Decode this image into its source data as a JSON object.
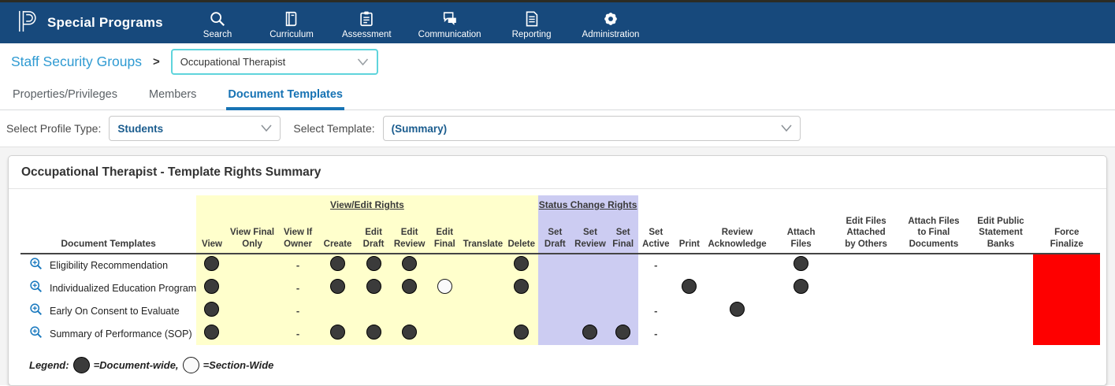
{
  "topnav": {
    "brand": "Special Programs",
    "items": [
      {
        "label": "Search",
        "icon": "search-icon"
      },
      {
        "label": "Curriculum",
        "icon": "book-icon"
      },
      {
        "label": "Assessment",
        "icon": "clipboard-icon"
      },
      {
        "label": "Communication",
        "icon": "chat-bubbles-icon"
      },
      {
        "label": "Reporting",
        "icon": "report-document-icon"
      },
      {
        "label": "Administration",
        "icon": "gear-icon"
      }
    ]
  },
  "breadcrumb": {
    "root": "Staff Security Groups",
    "separator": ">",
    "group_select_value": "Occupational Therapist"
  },
  "tabs": [
    {
      "label": "Properties/Privileges",
      "active": false
    },
    {
      "label": "Members",
      "active": false
    },
    {
      "label": "Document Templates",
      "active": true
    }
  ],
  "filters": {
    "profile_type_label": "Select Profile Type:",
    "profile_type_value": "Students",
    "template_label": "Select Template:",
    "template_value": "(Summary)"
  },
  "summary_card": {
    "title": "Occupational Therapist - Template Rights Summary",
    "doc_col_header": "Document Templates",
    "groups": [
      {
        "key": "view_edit",
        "label": "View/Edit Rights",
        "color": "#ffffcc"
      },
      {
        "key": "status_change",
        "label": "Status Change Rights",
        "color": "#ccccf2"
      }
    ],
    "columns": [
      {
        "key": "view",
        "label": "View",
        "group": "view_edit"
      },
      {
        "key": "view_final_only",
        "label": "View Final\nOnly",
        "group": "view_edit"
      },
      {
        "key": "view_if_owner",
        "label": "View If\nOwner",
        "group": "view_edit"
      },
      {
        "key": "create",
        "label": "Create",
        "group": "view_edit"
      },
      {
        "key": "edit_draft",
        "label": "Edit\nDraft",
        "group": "view_edit"
      },
      {
        "key": "edit_review",
        "label": "Edit\nReview",
        "group": "view_edit"
      },
      {
        "key": "edit_final",
        "label": "Edit\nFinal",
        "group": "view_edit"
      },
      {
        "key": "translate",
        "label": "Translate",
        "group": "view_edit"
      },
      {
        "key": "delete",
        "label": "Delete",
        "group": "view_edit"
      },
      {
        "key": "set_draft",
        "label": "Set\nDraft",
        "group": "status_change"
      },
      {
        "key": "set_review",
        "label": "Set\nReview",
        "group": "status_change"
      },
      {
        "key": "set_final",
        "label": "Set\nFinal",
        "group": "status_change"
      },
      {
        "key": "set_active",
        "label": "Set\nActive",
        "group": null
      },
      {
        "key": "print",
        "label": "Print",
        "group": null
      },
      {
        "key": "review_acknowledge",
        "label": "Review\nAcknowledge",
        "group": null
      },
      {
        "key": "attach_files",
        "label": "Attach\nFiles",
        "group": null
      },
      {
        "key": "edit_files_attached_by_others",
        "label": "Edit Files\nAttached\nby Others",
        "group": null
      },
      {
        "key": "attach_files_to_final_documents",
        "label": "Attach Files\nto Final\nDocuments",
        "group": null
      },
      {
        "key": "edit_public_statement_banks",
        "label": "Edit Public\nStatement\nBanks",
        "group": null
      },
      {
        "key": "force_finalize",
        "label": "Force\nFinalize",
        "group": null
      }
    ],
    "rows": [
      {
        "label": "Eligibility Recommendation",
        "row_icon": "zoom-in-icon",
        "cells": {
          "view": "dark",
          "view_if_owner": "dash",
          "create": "dark",
          "edit_draft": "dark",
          "edit_review": "dark",
          "delete": "dark",
          "set_active": "dash",
          "attach_files": "dark",
          "force_finalize": "red"
        }
      },
      {
        "label": "Individualized Education Program",
        "row_icon": "zoom-in-icon",
        "cells": {
          "view": "dark",
          "view_if_owner": "dash",
          "create": "dark",
          "edit_draft": "dark",
          "edit_review": "dark",
          "edit_final": "white",
          "delete": "dark",
          "print": "dark",
          "attach_files": "dark",
          "force_finalize": "red"
        }
      },
      {
        "label": "Early On Consent to Evaluate",
        "row_icon": "zoom-in-icon",
        "cells": {
          "view": "dark",
          "view_if_owner": "dash",
          "set_active": "dash",
          "review_acknowledge": "dark",
          "force_finalize": "red"
        }
      },
      {
        "label": "Summary of Performance (SOP)",
        "row_icon": "zoom-in-icon",
        "cells": {
          "view": "dark",
          "view_if_owner": "dash",
          "create": "dark",
          "edit_draft": "dark",
          "edit_review": "dark",
          "delete": "dark",
          "set_review": "dark",
          "set_final": "dark",
          "set_active": "dash",
          "force_finalize": "red"
        }
      }
    ],
    "legend": {
      "label": "Legend:",
      "entries": [
        {
          "symbol": "dark",
          "text": "=Document-wide,"
        },
        {
          "symbol": "white",
          "text": "=Section-Wide"
        }
      ]
    }
  },
  "colors": {
    "navbar_blue": "#17497c",
    "active_tab_blue": "#1773b4",
    "breadcrumb_link_blue": "#2e9ad2",
    "select_value_blue": "#1a5c8e",
    "group_select_border_cyan": "#5fd4dc",
    "view_edit_yellow": "#ffffcc",
    "status_change_purple": "#ccccf2",
    "force_finalize_red": "#fe0000",
    "dot_dark": "#3b3b3b"
  },
  "icons": {
    "row_zoom": "zoom-in-icon",
    "select_chevron": "chevron-down-icon"
  }
}
